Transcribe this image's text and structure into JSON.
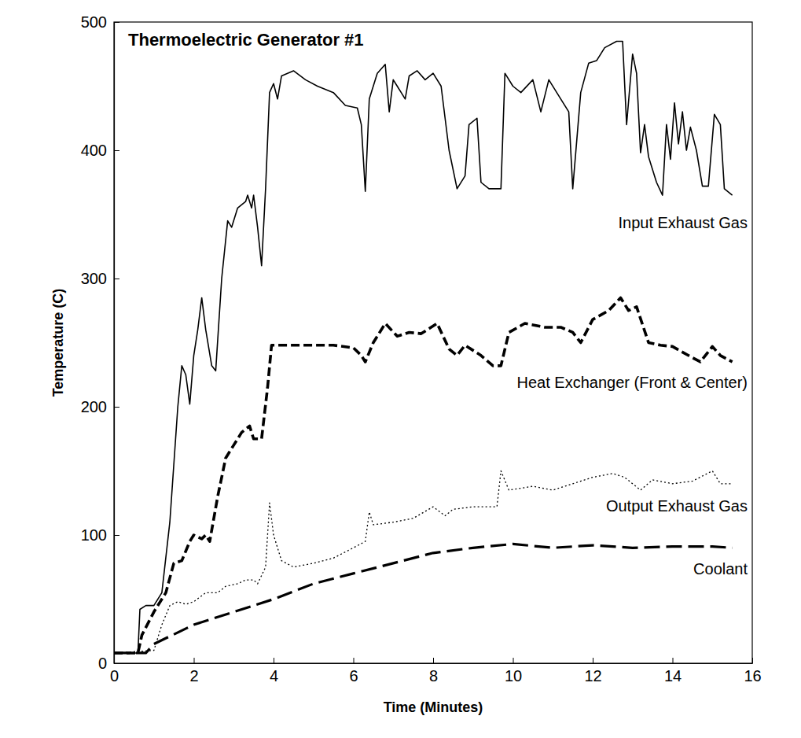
{
  "chart_data": {
    "type": "line",
    "title": "Thermoelectric Generator #1",
    "x_label": "Time (Minutes)",
    "y_label": "Temperature (C)",
    "xlim": [
      0,
      16
    ],
    "ylim": [
      0,
      500
    ],
    "xticks": [
      0,
      2,
      4,
      6,
      8,
      10,
      12,
      14,
      16
    ],
    "yticks": [
      0,
      100,
      200,
      300,
      400,
      500
    ],
    "grid": false,
    "series": [
      {
        "name": "Input Exhaust Gas",
        "color": "#000000",
        "line_style": "solid",
        "x": [
          0,
          0.6,
          0.65,
          0.8,
          1.0,
          1.2,
          1.4,
          1.6,
          1.7,
          1.8,
          1.9,
          2.0,
          2.1,
          2.2,
          2.3,
          2.45,
          2.55,
          2.7,
          2.85,
          2.95,
          3.1,
          3.3,
          3.35,
          3.45,
          3.5,
          3.6,
          3.7,
          3.8,
          3.9,
          4.0,
          4.1,
          4.2,
          4.5,
          4.8,
          5.1,
          5.5,
          5.8,
          6.1,
          6.2,
          6.3,
          6.4,
          6.6,
          6.8,
          6.9,
          7.0,
          7.1,
          7.3,
          7.4,
          7.6,
          7.8,
          8.0,
          8.2,
          8.4,
          8.6,
          8.8,
          8.9,
          9.1,
          9.2,
          9.4,
          9.7,
          9.8,
          10.0,
          10.2,
          10.5,
          10.7,
          10.9,
          11.2,
          11.4,
          11.5,
          11.7,
          11.9,
          12.1,
          12.3,
          12.6,
          12.75,
          12.85,
          13.0,
          13.1,
          13.2,
          13.3,
          13.4,
          13.6,
          13.75,
          13.85,
          13.95,
          14.05,
          14.15,
          14.25,
          14.35,
          14.45,
          14.6,
          14.75,
          14.9,
          15.05,
          15.2,
          15.3,
          15.5
        ],
        "values": [
          8,
          8,
          42,
          45,
          45,
          55,
          110,
          200,
          232,
          225,
          202,
          240,
          260,
          285,
          260,
          232,
          228,
          300,
          345,
          340,
          355,
          360,
          365,
          355,
          365,
          340,
          310,
          370,
          445,
          452,
          440,
          458,
          462,
          455,
          450,
          445,
          435,
          433,
          420,
          368,
          440,
          460,
          467,
          430,
          455,
          450,
          440,
          458,
          462,
          455,
          460,
          450,
          400,
          370,
          380,
          420,
          425,
          375,
          370,
          370,
          460,
          450,
          445,
          455,
          430,
          455,
          440,
          430,
          370,
          445,
          468,
          470,
          480,
          485,
          485,
          420,
          475,
          460,
          398,
          420,
          395,
          375,
          365,
          420,
          393,
          437,
          405,
          430,
          400,
          418,
          400,
          372,
          372,
          428,
          420,
          370,
          365
        ]
      },
      {
        "name": "Heat Exchanger (Front & Center)",
        "color": "#000000",
        "line_style": "dashed",
        "x": [
          0,
          0.6,
          0.7,
          1.0,
          1.3,
          1.5,
          1.7,
          1.9,
          2.0,
          2.2,
          2.3,
          2.4,
          2.6,
          2.8,
          3.0,
          3.2,
          3.4,
          3.5,
          3.7,
          3.85,
          3.95,
          4.5,
          5.5,
          6.0,
          6.2,
          6.3,
          6.5,
          6.8,
          7.1,
          7.4,
          7.7,
          8.1,
          8.4,
          8.6,
          8.8,
          9.2,
          9.5,
          9.7,
          9.9,
          10.3,
          10.8,
          11.2,
          11.5,
          11.7,
          12.0,
          12.4,
          12.7,
          12.9,
          13.1,
          13.4,
          13.7,
          14.0,
          14.4,
          14.7,
          15.0,
          15.2,
          15.5
        ],
        "values": [
          8,
          8,
          22,
          40,
          55,
          78,
          80,
          95,
          100,
          97,
          100,
          95,
          130,
          160,
          170,
          180,
          185,
          175,
          175,
          215,
          248,
          248,
          248,
          246,
          240,
          235,
          250,
          265,
          255,
          258,
          257,
          265,
          245,
          240,
          248,
          240,
          232,
          232,
          258,
          265,
          262,
          262,
          258,
          250,
          268,
          275,
          285,
          275,
          278,
          250,
          248,
          247,
          240,
          235,
          247,
          240,
          235
        ]
      },
      {
        "name": "Output Exhaust Gas",
        "color": "#000000",
        "line_style": "dotted",
        "x": [
          0,
          1.0,
          1.2,
          1.4,
          1.6,
          1.8,
          2.0,
          2.3,
          2.6,
          2.8,
          3.1,
          3.3,
          3.5,
          3.6,
          3.8,
          3.9,
          4.0,
          4.2,
          4.5,
          5.0,
          5.5,
          6.0,
          6.3,
          6.4,
          6.5,
          7.0,
          7.5,
          8.0,
          8.3,
          8.5,
          9.0,
          9.6,
          9.7,
          9.9,
          10.5,
          11.0,
          11.5,
          12.0,
          12.5,
          12.8,
          13.2,
          13.5,
          14.0,
          14.5,
          15.0,
          15.2,
          15.5
        ],
        "values": [
          8,
          10,
          30,
          45,
          48,
          46,
          48,
          55,
          55,
          60,
          62,
          65,
          65,
          62,
          75,
          125,
          100,
          80,
          75,
          78,
          82,
          90,
          95,
          118,
          108,
          110,
          113,
          122,
          115,
          120,
          122,
          122,
          150,
          135,
          138,
          135,
          140,
          145,
          148,
          145,
          135,
          143,
          140,
          142,
          150,
          140,
          140
        ]
      },
      {
        "name": "Coolant",
        "color": "#000000",
        "line_style": "long-dashed",
        "x": [
          0,
          0.8,
          1.0,
          2.0,
          3.0,
          4.0,
          5.0,
          6.0,
          7.0,
          8.0,
          9.0,
          10.0,
          11.0,
          12.0,
          13.0,
          14.0,
          15.0,
          15.5
        ],
        "values": [
          8,
          8,
          15,
          30,
          40,
          50,
          62,
          70,
          78,
          86,
          90,
          93,
          90,
          92,
          90,
          91,
          91,
          90
        ]
      }
    ]
  }
}
